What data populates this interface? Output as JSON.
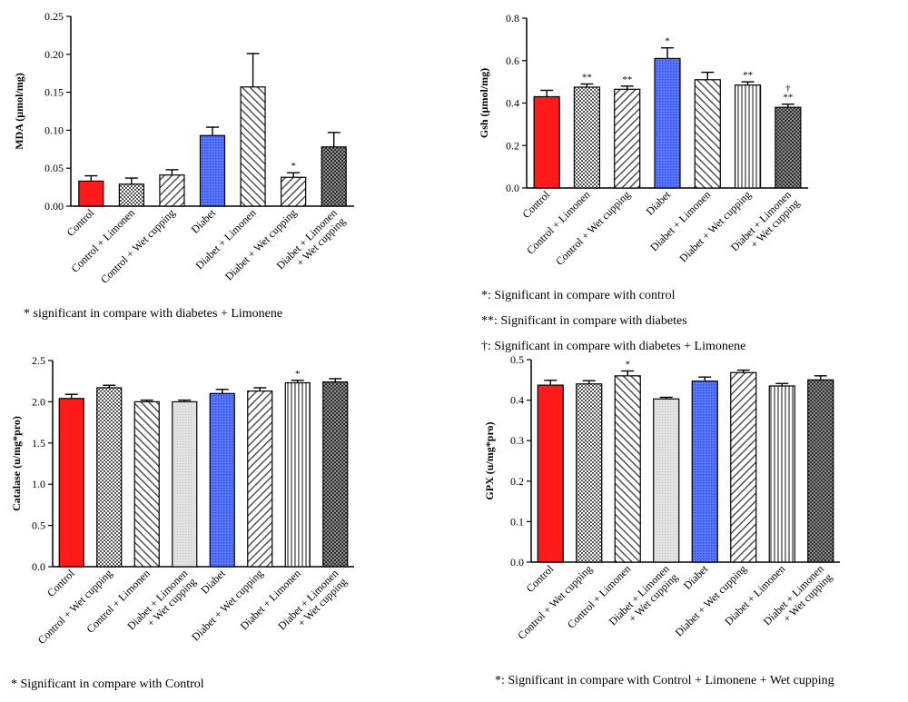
{
  "chart_data": [
    {
      "type": "bar",
      "ylabel": "MDA (µmol/mg)",
      "ylim": [
        0,
        0.25
      ],
      "yticks": [
        "0.00",
        "0.05",
        "0.10",
        "0.15",
        "0.20",
        "0.25"
      ],
      "categories": [
        "Control",
        "Control + Limonen",
        "Control + Wet cupping",
        "Diabet",
        "Diabet + Limonen",
        "Diabet + Wet cupping",
        "Diabet + Limonen\n+ Wet cupping"
      ],
      "values": [
        0.033,
        0.029,
        0.041,
        0.093,
        0.157,
        0.038,
        0.078
      ],
      "errors": [
        0.007,
        0.008,
        0.007,
        0.011,
        0.044,
        0.006,
        0.019
      ],
      "markers": [
        "",
        "",
        "",
        "",
        "",
        "*",
        ""
      ],
      "fills": [
        "red",
        "check",
        "diag",
        "blue",
        "diag2",
        "diag",
        "checkdark"
      ],
      "notes": [
        "* significant in compare with diabetes + Limonene"
      ]
    },
    {
      "type": "bar",
      "ylabel": "Gsh (µmol/mg)",
      "ylim": [
        0,
        0.8
      ],
      "yticks": [
        "0.0",
        "0.2",
        "0.4",
        "0.6",
        "0.8"
      ],
      "categories": [
        "Control",
        "Control + Limonen",
        "Control + Wet cupping",
        "Diabet",
        "Diabet + Limonen",
        "Diabet + Wet cupping",
        "Diabet + Limonen\n+ Wet cupping"
      ],
      "values": [
        0.43,
        0.475,
        0.465,
        0.61,
        0.51,
        0.485,
        0.38
      ],
      "errors": [
        0.03,
        0.015,
        0.015,
        0.05,
        0.035,
        0.015,
        0.015
      ],
      "markers": [
        "",
        "**",
        "**",
        "*",
        "",
        "**",
        "†\n**"
      ],
      "fills": [
        "red",
        "check",
        "diag",
        "blue",
        "diag2",
        "vert",
        "checkdark"
      ],
      "notes": [
        "*: Significant in compare with control",
        "**: Significant in compare with diabetes",
        "†: Significant in compare with diabetes + Limonene"
      ]
    },
    {
      "type": "bar",
      "ylabel": "Catalase (u/mg*pro)",
      "ylim": [
        0,
        2.5
      ],
      "yticks": [
        "0.0",
        "0.5",
        "1.0",
        "1.5",
        "2.0",
        "2.5"
      ],
      "categories": [
        "Control",
        "Control + Wet cupping",
        "Control + Limonen",
        "Diabet + Limonen\n+ Wet cupping",
        "Diabet",
        "Diabet + Wet cupping",
        "Diabet + Limonen",
        "Diabet + Limonen\n+ Wet cupping"
      ],
      "values": [
        2.04,
        2.17,
        2.0,
        2.0,
        2.1,
        2.13,
        2.23,
        2.24
      ],
      "errors": [
        0.05,
        0.03,
        0.02,
        0.02,
        0.05,
        0.04,
        0.03,
        0.04
      ],
      "markers": [
        "",
        "",
        "",
        "",
        "",
        "",
        "*",
        ""
      ],
      "fills": [
        "red",
        "check",
        "diag2",
        "light",
        "blue",
        "diag",
        "vert",
        "checkdark"
      ],
      "notes": [
        "* Significant in compare with Control"
      ]
    },
    {
      "type": "bar",
      "ylabel": "GPX (u/mg*pro)",
      "ylim": [
        0,
        0.5
      ],
      "yticks": [
        "0.0",
        "0.1",
        "0.2",
        "0.3",
        "0.4",
        "0.5"
      ],
      "categories": [
        "Control",
        "Control + Wet cupping",
        "Control + Limonen",
        "Diabet + Limonen\n+ Wet cupping",
        "Diabet",
        "Diabet + Wet cupping",
        "Diabet + Limonen",
        "Diabet + Limonen\n+ Wet cupping"
      ],
      "values": [
        0.437,
        0.44,
        0.46,
        0.403,
        0.447,
        0.468,
        0.435,
        0.45
      ],
      "errors": [
        0.012,
        0.008,
        0.012,
        0.004,
        0.01,
        0.006,
        0.006,
        0.01
      ],
      "markers": [
        "",
        "",
        "*",
        "",
        "",
        "",
        "",
        ""
      ],
      "fills": [
        "red",
        "check",
        "diag2",
        "light",
        "blue",
        "diag",
        "vert",
        "checkdark"
      ],
      "notes": [
        "*: Significant in compare with Control  + Limonene + Wet cupping"
      ]
    }
  ],
  "colors": {
    "red": "#ff1a1a",
    "blue": "#4a6bff",
    "light": "#dcdcdc",
    "dark": "#4a4a4a",
    "axis": "#000000"
  }
}
